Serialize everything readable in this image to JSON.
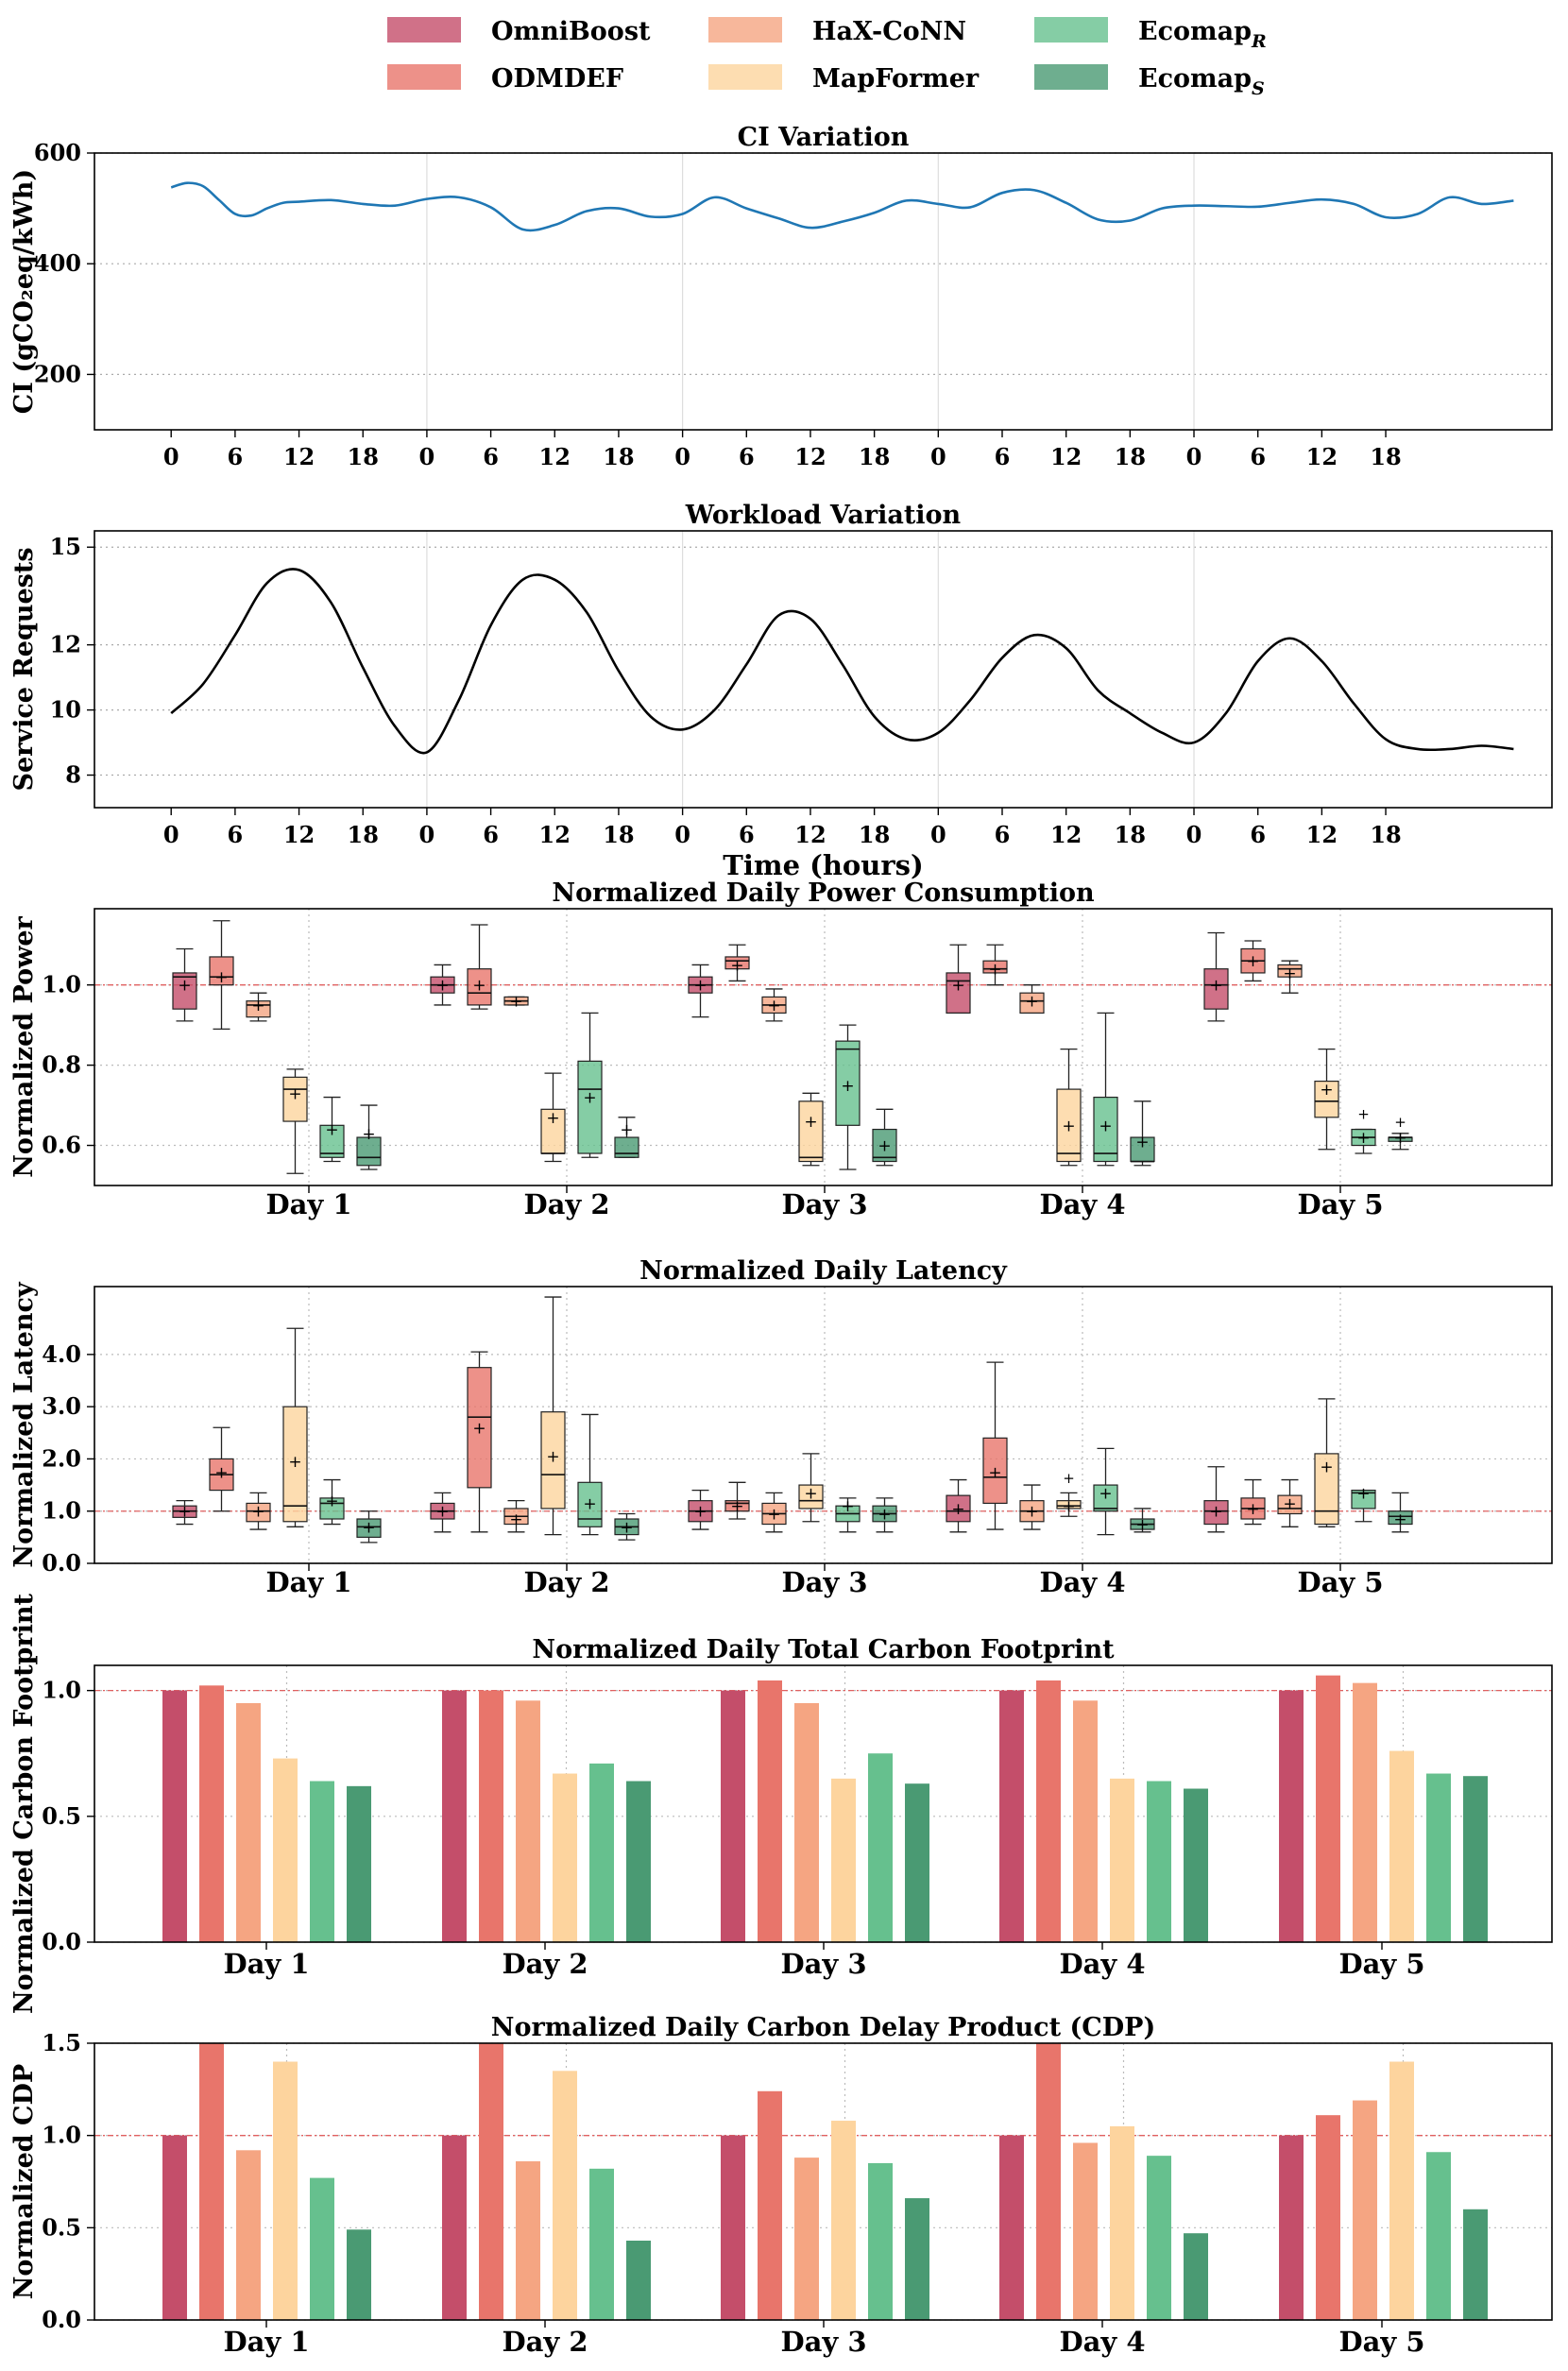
{
  "colors": {
    "OmniBoost": "#c44e6a",
    "ODMDEF": "#e8756b",
    "HaX-CoNN": "#f5a582",
    "MapFormer": "#fdd49e",
    "EcomapR": "#66c08e",
    "EcomapS": "#4a9a73",
    "ci_line": "#1f77b4",
    "workload_line": "#000000",
    "baseline": "#e06060"
  },
  "legend": [
    {
      "name": "OmniBoost",
      "label": "OmniBoost",
      "sub": ""
    },
    {
      "name": "HaX-CoNN",
      "label": "HaX-CoNN",
      "sub": ""
    },
    {
      "name": "EcomapR",
      "label": "Ecomap",
      "sub": "R"
    },
    {
      "name": "ODMDEF",
      "label": "ODMDEF",
      "sub": ""
    },
    {
      "name": "MapFormer",
      "label": "MapFormer",
      "sub": ""
    },
    {
      "name": "EcomapS",
      "label": "Ecomap",
      "sub": "S"
    }
  ],
  "chart_data": [
    {
      "id": "ci",
      "type": "line",
      "title": "CI Variation",
      "ylabel": "CI (gCO₂eq/kWh)",
      "xlabel": "",
      "ylim": [
        100,
        600
      ],
      "yticks": [
        200,
        400,
        600
      ],
      "xlim": [
        -1.2,
        21.6
      ],
      "xtick_positions": [
        0,
        1,
        2,
        3,
        4,
        5,
        6,
        7,
        8,
        9,
        10,
        11,
        12,
        13,
        14,
        15,
        16,
        17,
        18,
        19
      ],
      "xtick_labels": [
        "0",
        "6",
        "12",
        "18",
        "0",
        "6",
        "12",
        "18",
        "0",
        "6",
        "12",
        "18",
        "0",
        "6",
        "12",
        "18",
        "0",
        "6",
        "12",
        "18"
      ],
      "day_lines": [
        4,
        8,
        12,
        16
      ],
      "x": [
        0,
        0.25,
        0.5,
        0.75,
        1.0,
        1.25,
        1.5,
        1.75,
        2.0,
        2.5,
        3.0,
        3.5,
        4.0,
        4.5,
        5.0,
        5.5,
        6.0,
        6.5,
        7.0,
        7.5,
        8.0,
        8.5,
        9.0,
        9.5,
        10.0,
        10.5,
        11.0,
        11.5,
        12.0,
        12.5,
        13.0,
        13.5,
        14.0,
        14.5,
        15.0,
        15.5,
        16.0,
        16.5,
        17.0,
        17.5,
        18.0,
        18.5,
        19.0,
        19.5,
        20.0,
        20.5,
        21.0
      ],
      "y": [
        538,
        546,
        540,
        515,
        490,
        487,
        500,
        510,
        512,
        515,
        508,
        505,
        517,
        520,
        502,
        462,
        470,
        495,
        500,
        485,
        490,
        520,
        500,
        482,
        465,
        476,
        492,
        514,
        508,
        502,
        528,
        533,
        510,
        480,
        478,
        500,
        505,
        504,
        503,
        510,
        516,
        508,
        484,
        490,
        520,
        508,
        514
      ]
    },
    {
      "id": "workload",
      "type": "line",
      "title": "Workload Variation",
      "ylabel": "Service Requests",
      "xlabel": "Time (hours)",
      "ylim": [
        7,
        15.5
      ],
      "yticks": [
        8,
        10,
        12,
        15
      ],
      "ytick_labels": [
        "8",
        "10",
        "12",
        "15"
      ],
      "xlim": [
        -1.2,
        21.6
      ],
      "xtick_positions": [
        0,
        1,
        2,
        3,
        4,
        5,
        6,
        7,
        8,
        9,
        10,
        11,
        12,
        13,
        14,
        15,
        16,
        17,
        18,
        19
      ],
      "xtick_labels": [
        "0",
        "6",
        "12",
        "18",
        "0",
        "6",
        "12",
        "18",
        "0",
        "6",
        "12",
        "18",
        "0",
        "6",
        "12",
        "18",
        "0",
        "6",
        "12",
        "18"
      ],
      "day_lines": [
        4,
        8,
        12,
        16
      ],
      "x": [
        0,
        0.5,
        1.0,
        1.5,
        2.0,
        2.5,
        3.0,
        3.5,
        4.0,
        4.5,
        5.0,
        5.5,
        6.0,
        6.5,
        7.0,
        7.5,
        8.0,
        8.5,
        9.0,
        9.5,
        10.0,
        10.5,
        11.0,
        11.5,
        12.0,
        12.5,
        13.0,
        13.5,
        14.0,
        14.5,
        15.0,
        15.5,
        16.0,
        16.5,
        17.0,
        17.5,
        18.0,
        18.5,
        19.0,
        19.5,
        20.0,
        20.5,
        21.0
      ],
      "y": [
        9.9,
        10.8,
        12.3,
        13.9,
        14.3,
        13.3,
        11.3,
        9.5,
        8.7,
        10.3,
        12.6,
        14.0,
        14.0,
        13.0,
        11.2,
        9.8,
        9.4,
        10.0,
        11.4,
        12.9,
        12.8,
        11.4,
        9.8,
        9.1,
        9.3,
        10.3,
        11.6,
        12.3,
        11.9,
        10.6,
        9.9,
        9.3,
        9.0,
        9.9,
        11.5,
        12.2,
        11.5,
        10.2,
        9.1,
        8.8,
        8.8,
        8.9,
        8.8
      ]
    },
    {
      "id": "power",
      "type": "box",
      "title": "Normalized Daily Power Consumption",
      "ylabel": "Normalized Power",
      "ylim": [
        0.5,
        1.19
      ],
      "yticks": [
        0.6,
        0.8,
        1.0
      ],
      "ytick_labels": [
        "0.6",
        "0.8",
        "1.0"
      ],
      "baseline": 1.0,
      "categories": [
        "Day 1",
        "Day 2",
        "Day 3",
        "Day 4",
        "Day 5"
      ],
      "methods": [
        "OmniBoost",
        "ODMDEF",
        "HaX-CoNN",
        "MapFormer",
        "EcomapR",
        "EcomapS"
      ],
      "boxes": [
        [
          [
            0.91,
            0.94,
            1.02,
            1.03,
            1.09,
            1.0
          ],
          [
            0.89,
            1.0,
            1.02,
            1.07,
            1.16,
            1.02
          ],
          [
            0.91,
            0.92,
            0.95,
            0.96,
            0.98,
            0.95
          ],
          [
            0.53,
            0.66,
            0.74,
            0.77,
            0.79,
            0.73
          ],
          [
            0.56,
            0.57,
            0.58,
            0.65,
            0.72,
            0.64
          ],
          [
            0.54,
            0.55,
            0.57,
            0.62,
            0.7,
            0.63
          ]
        ],
        [
          [
            0.95,
            0.98,
            1.0,
            1.02,
            1.05,
            1.0
          ],
          [
            0.94,
            0.95,
            0.98,
            1.04,
            1.15,
            1.0
          ],
          [
            0.95,
            0.95,
            0.96,
            0.97,
            0.97,
            0.96
          ],
          [
            0.56,
            0.58,
            0.58,
            0.69,
            0.78,
            0.67
          ],
          [
            0.57,
            0.58,
            0.74,
            0.81,
            0.93,
            0.72
          ],
          [
            0.57,
            0.57,
            0.58,
            0.62,
            0.67,
            0.64
          ]
        ],
        [
          [
            0.92,
            0.98,
            1.0,
            1.02,
            1.05,
            1.0
          ],
          [
            1.01,
            1.04,
            1.06,
            1.07,
            1.1,
            1.05
          ],
          [
            0.91,
            0.93,
            0.95,
            0.97,
            0.99,
            0.95
          ],
          [
            0.55,
            0.56,
            0.57,
            0.71,
            0.73,
            0.66
          ],
          [
            0.54,
            0.65,
            0.84,
            0.86,
            0.9,
            0.75
          ],
          [
            0.55,
            0.56,
            0.57,
            0.64,
            0.69,
            0.6
          ]
        ],
        [
          [
            0.93,
            0.93,
            1.01,
            1.03,
            1.1,
            1.0
          ],
          [
            1.0,
            1.03,
            1.04,
            1.06,
            1.1,
            1.04
          ],
          [
            0.93,
            0.93,
            0.96,
            0.98,
            1.0,
            0.96
          ],
          [
            0.55,
            0.56,
            0.58,
            0.74,
            0.84,
            0.65
          ],
          [
            0.55,
            0.56,
            0.58,
            0.72,
            0.93,
            0.65
          ],
          [
            0.55,
            0.56,
            0.56,
            0.62,
            0.71,
            0.61
          ]
        ],
        [
          [
            0.91,
            0.94,
            1.0,
            1.04,
            1.13,
            1.0
          ],
          [
            1.01,
            1.03,
            1.06,
            1.09,
            1.11,
            1.06
          ],
          [
            0.98,
            1.02,
            1.04,
            1.05,
            1.06,
            1.03
          ],
          [
            0.59,
            0.67,
            0.71,
            0.76,
            0.84,
            0.74
          ],
          [
            0.58,
            0.6,
            0.62,
            0.64,
            0.64,
            0.62
          ],
          [
            0.59,
            0.61,
            0.62,
            0.62,
            0.63,
            0.62
          ]
        ]
      ],
      "outliers": [
        [],
        [],
        [],
        [],
        [
          [
            4,
            0.68
          ],
          [
            5,
            0.66
          ]
        ]
      ]
    },
    {
      "id": "latency",
      "type": "box",
      "title": "Normalized Daily Latency",
      "ylabel": "Normalized Latency",
      "ylim": [
        0.0,
        5.3
      ],
      "yticks": [
        0.0,
        1.0,
        2.0,
        3.0,
        4.0
      ],
      "ytick_labels": [
        "0.0",
        "1.0",
        "2.0",
        "3.0",
        "4.0"
      ],
      "baseline": 1.0,
      "categories": [
        "Day 1",
        "Day 2",
        "Day 3",
        "Day 4",
        "Day 5"
      ],
      "methods": [
        "OmniBoost",
        "ODMDEF",
        "HaX-CoNN",
        "MapFormer",
        "EcomapR",
        "EcomapS"
      ],
      "boxes": [
        [
          [
            0.75,
            0.88,
            1.0,
            1.1,
            1.2,
            1.0
          ],
          [
            1.0,
            1.4,
            1.7,
            2.0,
            2.6,
            1.75
          ],
          [
            0.65,
            0.8,
            1.0,
            1.15,
            1.35,
            1.0
          ],
          [
            0.7,
            0.8,
            1.1,
            3.0,
            4.5,
            1.95
          ],
          [
            0.75,
            0.85,
            1.15,
            1.25,
            1.6,
            1.2
          ],
          [
            0.4,
            0.5,
            0.7,
            0.85,
            1.0,
            0.7
          ]
        ],
        [
          [
            0.6,
            0.85,
            1.0,
            1.15,
            1.35,
            1.0
          ],
          [
            0.6,
            1.45,
            2.8,
            3.75,
            4.05,
            2.6
          ],
          [
            0.6,
            0.75,
            0.9,
            1.05,
            1.2,
            0.85
          ],
          [
            0.55,
            1.05,
            1.7,
            2.9,
            5.1,
            2.05
          ],
          [
            0.55,
            0.7,
            0.85,
            1.55,
            2.85,
            1.15
          ],
          [
            0.45,
            0.55,
            0.7,
            0.85,
            0.95,
            0.7
          ]
        ],
        [
          [
            0.65,
            0.8,
            1.0,
            1.2,
            1.4,
            1.0
          ],
          [
            0.85,
            1.0,
            1.15,
            1.2,
            1.55,
            1.1
          ],
          [
            0.6,
            0.75,
            0.95,
            1.15,
            1.35,
            0.95
          ],
          [
            0.8,
            1.05,
            1.2,
            1.5,
            2.1,
            1.35
          ],
          [
            0.6,
            0.8,
            0.95,
            1.1,
            1.25,
            1.1
          ],
          [
            0.6,
            0.8,
            0.95,
            1.1,
            1.25,
            0.95
          ]
        ],
        [
          [
            0.6,
            0.8,
            1.0,
            1.3,
            1.6,
            1.05
          ],
          [
            0.65,
            1.15,
            1.65,
            2.4,
            3.85,
            1.75
          ],
          [
            0.65,
            0.8,
            1.0,
            1.2,
            1.5,
            1.0
          ],
          [
            0.9,
            1.05,
            1.1,
            1.2,
            1.35,
            1.1
          ],
          [
            0.55,
            1.0,
            1.05,
            1.5,
            2.2,
            1.35
          ],
          [
            0.6,
            0.65,
            0.75,
            0.85,
            1.05,
            0.75
          ]
        ],
        [
          [
            0.6,
            0.75,
            1.0,
            1.2,
            1.85,
            1.0
          ],
          [
            0.75,
            0.85,
            1.05,
            1.25,
            1.6,
            1.05
          ],
          [
            0.7,
            0.95,
            1.05,
            1.3,
            1.6,
            1.15
          ],
          [
            0.7,
            0.75,
            1.0,
            2.1,
            3.15,
            1.85
          ],
          [
            0.8,
            1.05,
            1.35,
            1.4,
            1.4,
            1.35
          ],
          [
            0.6,
            0.75,
            0.9,
            1.0,
            1.35,
            0.85
          ]
        ]
      ],
      "outliers": [
        [],
        [],
        [],
        [
          [
            3,
            1.65
          ]
        ],
        []
      ]
    },
    {
      "id": "carbon",
      "type": "bar",
      "title": "Normalized Daily Total Carbon Footprint",
      "ylabel": "Normalized Carbon Footprint",
      "ylim": [
        0.0,
        1.1
      ],
      "yticks": [
        0.0,
        0.5,
        1.0
      ],
      "ytick_labels": [
        "0.0",
        "0.5",
        "1.0"
      ],
      "baseline": 1.0,
      "categories": [
        "Day 1",
        "Day 2",
        "Day 3",
        "Day 4",
        "Day 5"
      ],
      "series": [
        {
          "name": "OmniBoost",
          "values": [
            1.0,
            1.0,
            1.0,
            1.0,
            1.0
          ]
        },
        {
          "name": "ODMDEF",
          "values": [
            1.02,
            1.0,
            1.04,
            1.04,
            1.06
          ]
        },
        {
          "name": "HaX-CoNN",
          "values": [
            0.95,
            0.96,
            0.95,
            0.96,
            1.03
          ]
        },
        {
          "name": "MapFormer",
          "values": [
            0.73,
            0.67,
            0.65,
            0.65,
            0.76
          ]
        },
        {
          "name": "EcomapR",
          "values": [
            0.64,
            0.71,
            0.75,
            0.64,
            0.67
          ]
        },
        {
          "name": "EcomapS",
          "values": [
            0.62,
            0.64,
            0.63,
            0.61,
            0.66
          ]
        }
      ]
    },
    {
      "id": "cdp",
      "type": "bar",
      "title": "Normalized Daily Carbon Delay Product (CDP)",
      "ylabel": "Normalized CDP",
      "ylim": [
        0.0,
        1.5
      ],
      "yticks": [
        0.0,
        0.5,
        1.0,
        1.5
      ],
      "ytick_labels": [
        "0.0",
        "0.5",
        "1.0",
        "1.5"
      ],
      "baseline": 1.0,
      "categories": [
        "Day 1",
        "Day 2",
        "Day 3",
        "Day 4",
        "Day 5"
      ],
      "series": [
        {
          "name": "OmniBoost",
          "values": [
            1.0,
            1.0,
            1.0,
            1.0,
            1.0
          ]
        },
        {
          "name": "ODMDEF",
          "values": [
            1.5,
            1.5,
            1.24,
            1.5,
            1.11
          ]
        },
        {
          "name": "HaX-CoNN",
          "values": [
            0.92,
            0.86,
            0.88,
            0.96,
            1.19
          ]
        },
        {
          "name": "MapFormer",
          "values": [
            1.4,
            1.35,
            1.08,
            1.05,
            1.4
          ]
        },
        {
          "name": "EcomapR",
          "values": [
            0.77,
            0.82,
            0.85,
            0.89,
            0.91
          ]
        },
        {
          "name": "EcomapS",
          "values": [
            0.49,
            0.43,
            0.66,
            0.47,
            0.6
          ]
        }
      ]
    }
  ]
}
